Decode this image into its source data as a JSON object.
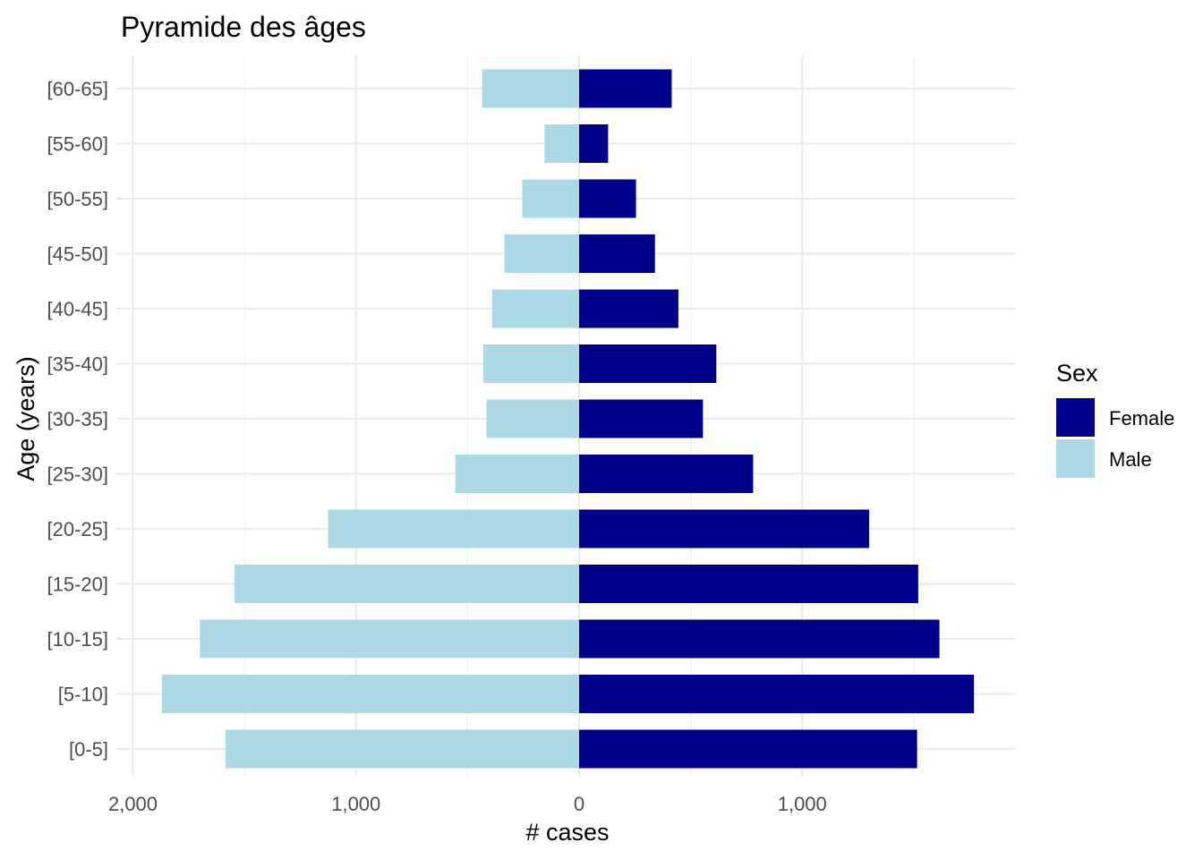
{
  "chart_data": {
    "type": "bar",
    "orientation": "horizontal",
    "title": "Pyramide des âges",
    "xlabel": "# cases",
    "ylabel": "Age (years)",
    "xlim": [
      -2000,
      1950
    ],
    "x_ticks": [
      {
        "value": -2000,
        "label": "2,000"
      },
      {
        "value": -1000,
        "label": "1,000"
      },
      {
        "value": 0,
        "label": "0"
      },
      {
        "value": 1000,
        "label": "1,000"
      }
    ],
    "categories": [
      "[0-5]",
      "[5-10]",
      "[10-15]",
      "[15-20]",
      "[20-25]",
      "[25-30]",
      "[30-35]",
      "[35-40]",
      "[40-45]",
      "[45-50]",
      "[50-55]",
      "[55-60]",
      "[60-65]"
    ],
    "series": [
      {
        "name": "Female",
        "color": "#00008B",
        "values": [
          1515,
          1770,
          1615,
          1520,
          1300,
          780,
          555,
          615,
          445,
          340,
          255,
          130,
          415
        ]
      },
      {
        "name": "Male",
        "color": "#ADD8E6",
        "values": [
          -1585,
          -1870,
          -1700,
          -1545,
          -1125,
          -555,
          -415,
          -430,
          -390,
          -335,
          -255,
          -155,
          -435
        ]
      }
    ],
    "legend": {
      "title": "Sex",
      "position": "right"
    },
    "grid": true
  }
}
